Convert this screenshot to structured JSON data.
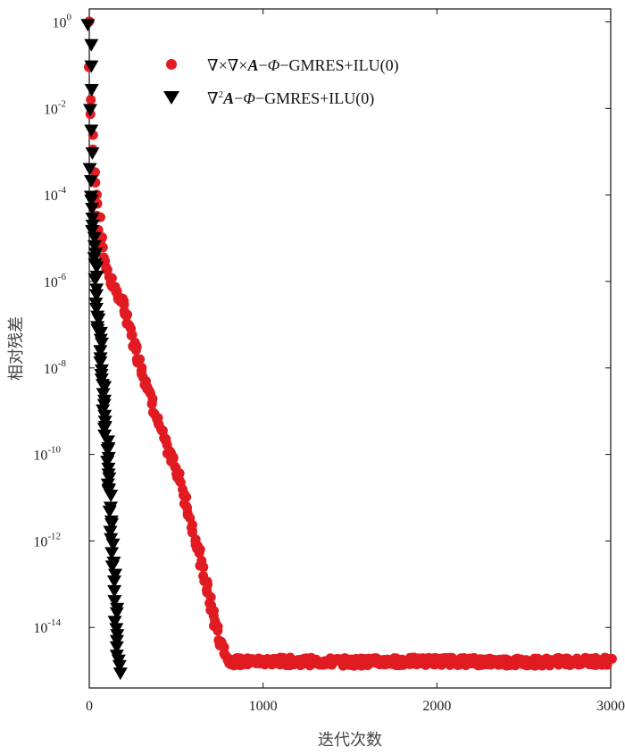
{
  "chart_data": {
    "type": "scatter",
    "title": "",
    "xlabel": "迭代次数",
    "ylabel": "相对残差",
    "xlim": [
      0,
      3000
    ],
    "ylim_log10": [
      -15.4,
      0.3
    ],
    "yscale": "log",
    "grid": false,
    "legend_position": "top-center",
    "x_ticks": [
      0,
      1000,
      2000,
      3000
    ],
    "x_tick_labels": [
      "0",
      "1000",
      "2000",
      "3000"
    ],
    "y_ticks_exponent": [
      0,
      -2,
      -4,
      -6,
      -8,
      -10,
      -12,
      -14
    ],
    "y_tick_labels": [
      "10^0",
      "10^-2",
      "10^-4",
      "10^-6",
      "10^-8",
      "10^-10",
      "10^-12",
      "10^-14"
    ],
    "series": [
      {
        "name": "∇×∇×A−Φ−GMRES+ILU(0)",
        "legend_parts": {
          "prefix": "∇×∇×",
          "var1": "A",
          "dash1": "−",
          "var2": "Φ",
          "suffix": "−GMRES+ILU(0)"
        },
        "marker": "circle",
        "color": "#e11b22",
        "points_log10": [
          [
            0,
            0
          ],
          [
            5,
            -1
          ],
          [
            10,
            -1.8
          ],
          [
            20,
            -2.6
          ],
          [
            30,
            -3.4
          ],
          [
            45,
            -4.2
          ],
          [
            60,
            -4.8
          ],
          [
            80,
            -5.3
          ],
          [
            100,
            -5.7
          ],
          [
            150,
            -6.2
          ],
          [
            200,
            -6.6
          ],
          [
            250,
            -7.3
          ],
          [
            300,
            -8.0
          ],
          [
            350,
            -8.6
          ],
          [
            400,
            -9.3
          ],
          [
            450,
            -9.9
          ],
          [
            500,
            -10.3
          ],
          [
            550,
            -11.0
          ],
          [
            600,
            -11.8
          ],
          [
            650,
            -12.6
          ],
          [
            700,
            -13.5
          ],
          [
            750,
            -14.3
          ],
          [
            800,
            -14.75
          ],
          [
            850,
            -14.8
          ],
          [
            1000,
            -14.78
          ],
          [
            1500,
            -14.8
          ],
          [
            2000,
            -14.78
          ],
          [
            2500,
            -14.8
          ],
          [
            3000,
            -14.78
          ]
        ]
      },
      {
        "name": "∇²A−Φ−GMRES+ILU(0)",
        "legend_parts": {
          "prefix": "∇",
          "sup": "2",
          "var1": "A",
          "dash1": "−",
          "var2": "Φ",
          "suffix": "−GMRES+ILU(0)"
        },
        "marker": "triangle-down",
        "color": "#000000",
        "points_log10": [
          [
            0,
            0
          ],
          [
            5,
            -1.5
          ],
          [
            10,
            -3.0
          ],
          [
            15,
            -4.0
          ],
          [
            20,
            -4.5
          ],
          [
            30,
            -5.3
          ],
          [
            40,
            -6.0
          ],
          [
            50,
            -6.8
          ],
          [
            60,
            -7.3
          ],
          [
            70,
            -8.0
          ],
          [
            80,
            -8.6
          ],
          [
            90,
            -9.2
          ],
          [
            100,
            -9.8
          ],
          [
            110,
            -10.4
          ],
          [
            120,
            -11.0
          ],
          [
            130,
            -11.8
          ],
          [
            140,
            -12.6
          ],
          [
            150,
            -13.5
          ],
          [
            160,
            -14.3
          ],
          [
            170,
            -15.0
          ]
        ]
      }
    ]
  }
}
